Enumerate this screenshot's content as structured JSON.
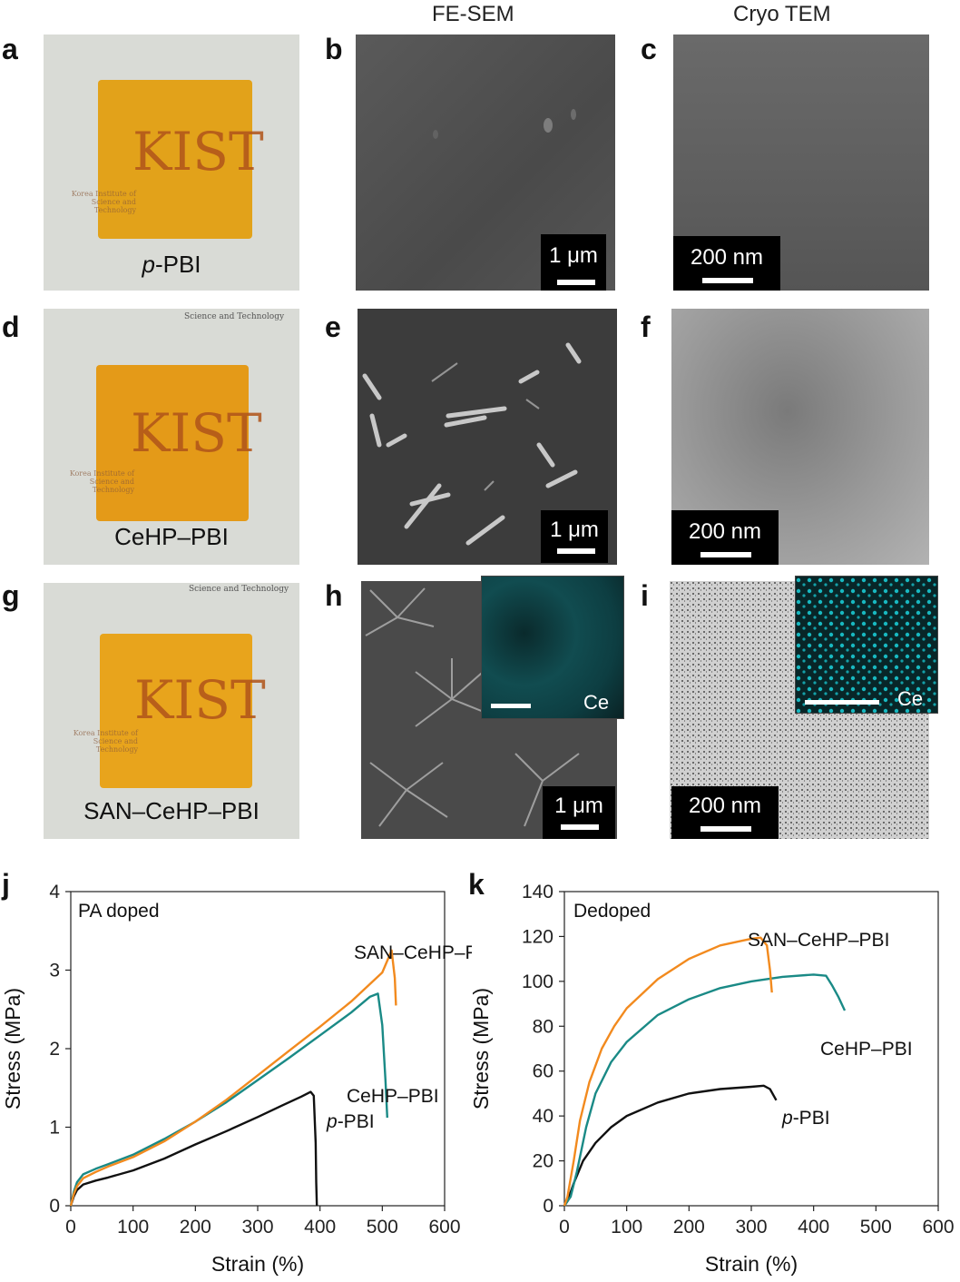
{
  "column_headers": {
    "sem": "FE-SEM",
    "tem": "Cryo TEM"
  },
  "panels": {
    "a": "a",
    "b": "b",
    "c": "c",
    "d": "d",
    "e": "e",
    "f": "f",
    "g": "g",
    "h": "h",
    "i": "i",
    "j": "j",
    "k": "k"
  },
  "photos": [
    {
      "caption_italic": "p",
      "caption_rest": "-PBI",
      "watermark": "KIST",
      "film_color": "#e2a21a"
    },
    {
      "caption_italic": "",
      "caption_rest": "CeHP–PBI",
      "watermark": "KIST",
      "film_color": "#e49a18"
    },
    {
      "caption_italic": "",
      "caption_rest": "SAN–CeHP–PBI",
      "watermark": "KIST",
      "film_color": "#e8a41c"
    }
  ],
  "photo_watermark_lines": [
    "Korea Institute of",
    "Science and Technology"
  ],
  "photo_top_text": "Science and Technology",
  "scalebars": {
    "b": "1 μm",
    "c": "200 nm",
    "e": "1 μm",
    "f": "200 nm",
    "h": "1 μm",
    "i": "200 nm"
  },
  "inset_labels": {
    "h": "Ce",
    "i": "Ce"
  },
  "colors": {
    "ppbi": "#111111",
    "cehp_pbi": "#1a8a86",
    "san_cehp_pbi": "#f28a1e",
    "ce_map": "#18b8c0"
  },
  "chart_data": [
    {
      "type": "line",
      "panel": "j",
      "title": "",
      "annotation": "PA doped",
      "xlabel": "Strain (%)",
      "ylabel": "Stress (MPa)",
      "xlim": [
        0,
        600
      ],
      "ylim": [
        0,
        4
      ],
      "xticks": [
        0,
        100,
        200,
        300,
        400,
        500,
        600
      ],
      "yticks": [
        0,
        1,
        2,
        3,
        4
      ],
      "grid": false,
      "series": [
        {
          "name": "p-PBI",
          "name_italic": "p",
          "name_rest": "-PBI",
          "color": "#111111",
          "x": [
            0,
            5,
            10,
            20,
            40,
            60,
            100,
            150,
            200,
            250,
            300,
            340,
            370,
            385,
            390,
            393,
            394,
            395
          ],
          "y": [
            0,
            0.12,
            0.2,
            0.27,
            0.32,
            0.36,
            0.45,
            0.6,
            0.78,
            0.95,
            1.13,
            1.28,
            1.39,
            1.45,
            1.4,
            0.8,
            0.3,
            0
          ]
        },
        {
          "name": "CeHP–PBI",
          "color": "#1a8a86",
          "x": [
            0,
            5,
            10,
            20,
            40,
            60,
            100,
            150,
            200,
            250,
            300,
            350,
            400,
            450,
            480,
            493,
            500,
            505,
            508
          ],
          "y": [
            0,
            0.18,
            0.3,
            0.4,
            0.47,
            0.53,
            0.65,
            0.85,
            1.07,
            1.32,
            1.6,
            1.88,
            2.17,
            2.46,
            2.66,
            2.7,
            2.3,
            1.6,
            1.12
          ]
        },
        {
          "name": "SAN–CeHP–PBI",
          "color": "#f28a1e",
          "x": [
            0,
            5,
            10,
            20,
            40,
            60,
            100,
            150,
            200,
            250,
            300,
            350,
            400,
            450,
            500,
            515,
            520,
            522
          ],
          "y": [
            0,
            0.15,
            0.25,
            0.35,
            0.43,
            0.5,
            0.62,
            0.82,
            1.07,
            1.35,
            1.66,
            1.97,
            2.28,
            2.6,
            2.97,
            3.25,
            2.9,
            2.55
          ]
        }
      ]
    },
    {
      "type": "line",
      "panel": "k",
      "title": "",
      "annotation": "Dedoped",
      "xlabel": "Strain (%)",
      "ylabel": "Stress (MPa)",
      "xlim": [
        0,
        600
      ],
      "ylim": [
        0,
        140
      ],
      "xticks": [
        0,
        100,
        200,
        300,
        400,
        500,
        600
      ],
      "yticks": [
        0,
        20,
        40,
        60,
        80,
        100,
        120,
        140
      ],
      "grid": false,
      "series": [
        {
          "name": "p-PBI",
          "name_italic": "p",
          "name_rest": "-PBI",
          "color": "#111111",
          "x": [
            0,
            5,
            15,
            30,
            50,
            75,
            100,
            150,
            200,
            250,
            300,
            320,
            330,
            340
          ],
          "y": [
            0,
            2,
            10,
            20,
            28,
            35,
            40,
            46,
            50,
            52,
            53,
            53.5,
            52,
            47
          ]
        },
        {
          "name": "CeHP–PBI",
          "color": "#1a8a86",
          "x": [
            0,
            10,
            20,
            35,
            50,
            75,
            100,
            150,
            200,
            250,
            300,
            350,
            400,
            420,
            430,
            440,
            450
          ],
          "y": [
            0,
            4,
            15,
            35,
            50,
            64,
            73,
            85,
            92,
            97,
            100,
            102,
            103,
            102.5,
            98,
            93,
            87
          ]
        },
        {
          "name": "SAN–CeHP–PBI",
          "color": "#f28a1e",
          "x": [
            0,
            5,
            15,
            25,
            40,
            60,
            80,
            100,
            150,
            200,
            250,
            300,
            315,
            325,
            330,
            333
          ],
          "y": [
            0,
            4,
            20,
            38,
            55,
            70,
            80,
            88,
            101,
            110,
            116,
            119,
            119.5,
            116,
            105,
            95
          ]
        }
      ]
    }
  ]
}
